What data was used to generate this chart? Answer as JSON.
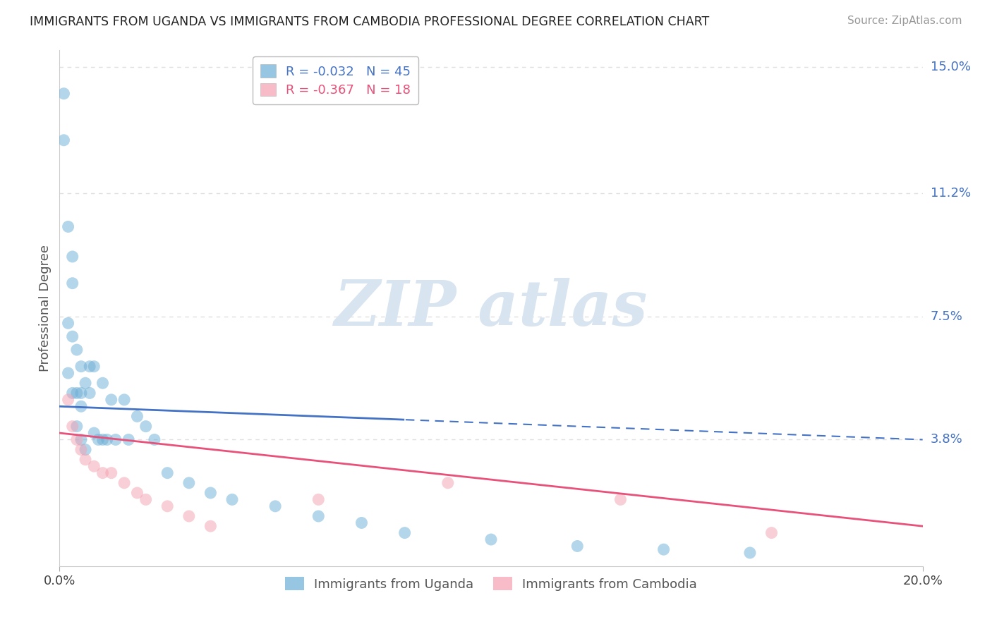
{
  "title": "IMMIGRANTS FROM UGANDA VS IMMIGRANTS FROM CAMBODIA PROFESSIONAL DEGREE CORRELATION CHART",
  "source": "Source: ZipAtlas.com",
  "ylabel": "Professional Degree",
  "xlim": [
    0.0,
    0.2
  ],
  "ylim": [
    0.0,
    0.155
  ],
  "ytick_labels_right": [
    "15.0%",
    "11.2%",
    "7.5%",
    "3.8%"
  ],
  "ytick_vals_right": [
    0.15,
    0.112,
    0.075,
    0.038
  ],
  "uganda_color": "#6baed6",
  "cambodia_color": "#f4a0b0",
  "uganda_line_color": "#4472c4",
  "cambodia_line_color": "#e8527a",
  "uganda_R": -0.032,
  "uganda_N": 45,
  "cambodia_R": -0.367,
  "cambodia_N": 18,
  "uganda_x": [
    0.001,
    0.001,
    0.002,
    0.002,
    0.002,
    0.003,
    0.003,
    0.003,
    0.003,
    0.004,
    0.004,
    0.004,
    0.005,
    0.005,
    0.005,
    0.006,
    0.006,
    0.006,
    0.007,
    0.007,
    0.008,
    0.008,
    0.009,
    0.01,
    0.01,
    0.011,
    0.012,
    0.013,
    0.015,
    0.016,
    0.018,
    0.02,
    0.022,
    0.025,
    0.03,
    0.035,
    0.04,
    0.05,
    0.06,
    0.07,
    0.08,
    0.1,
    0.12,
    0.14,
    0.16
  ],
  "uganda_y": [
    0.142,
    0.128,
    0.102,
    0.073,
    0.058,
    0.093,
    0.085,
    0.069,
    0.052,
    0.065,
    0.052,
    0.042,
    0.06,
    0.052,
    0.038,
    0.055,
    0.048,
    0.035,
    0.06,
    0.052,
    0.06,
    0.04,
    0.038,
    0.055,
    0.038,
    0.038,
    0.05,
    0.038,
    0.05,
    0.038,
    0.045,
    0.042,
    0.038,
    0.028,
    0.025,
    0.022,
    0.02,
    0.018,
    0.015,
    0.013,
    0.01,
    0.008,
    0.006,
    0.005,
    0.004
  ],
  "cambodia_x": [
    0.002,
    0.003,
    0.004,
    0.005,
    0.006,
    0.008,
    0.01,
    0.012,
    0.015,
    0.018,
    0.02,
    0.025,
    0.03,
    0.035,
    0.06,
    0.09,
    0.13,
    0.165
  ],
  "cambodia_y": [
    0.05,
    0.042,
    0.038,
    0.035,
    0.032,
    0.03,
    0.028,
    0.028,
    0.025,
    0.022,
    0.02,
    0.018,
    0.015,
    0.012,
    0.02,
    0.025,
    0.02,
    0.01
  ],
  "watermark_text": "ZIPatlas",
  "background_color": "#ffffff",
  "grid_color": "#e0e0e0"
}
